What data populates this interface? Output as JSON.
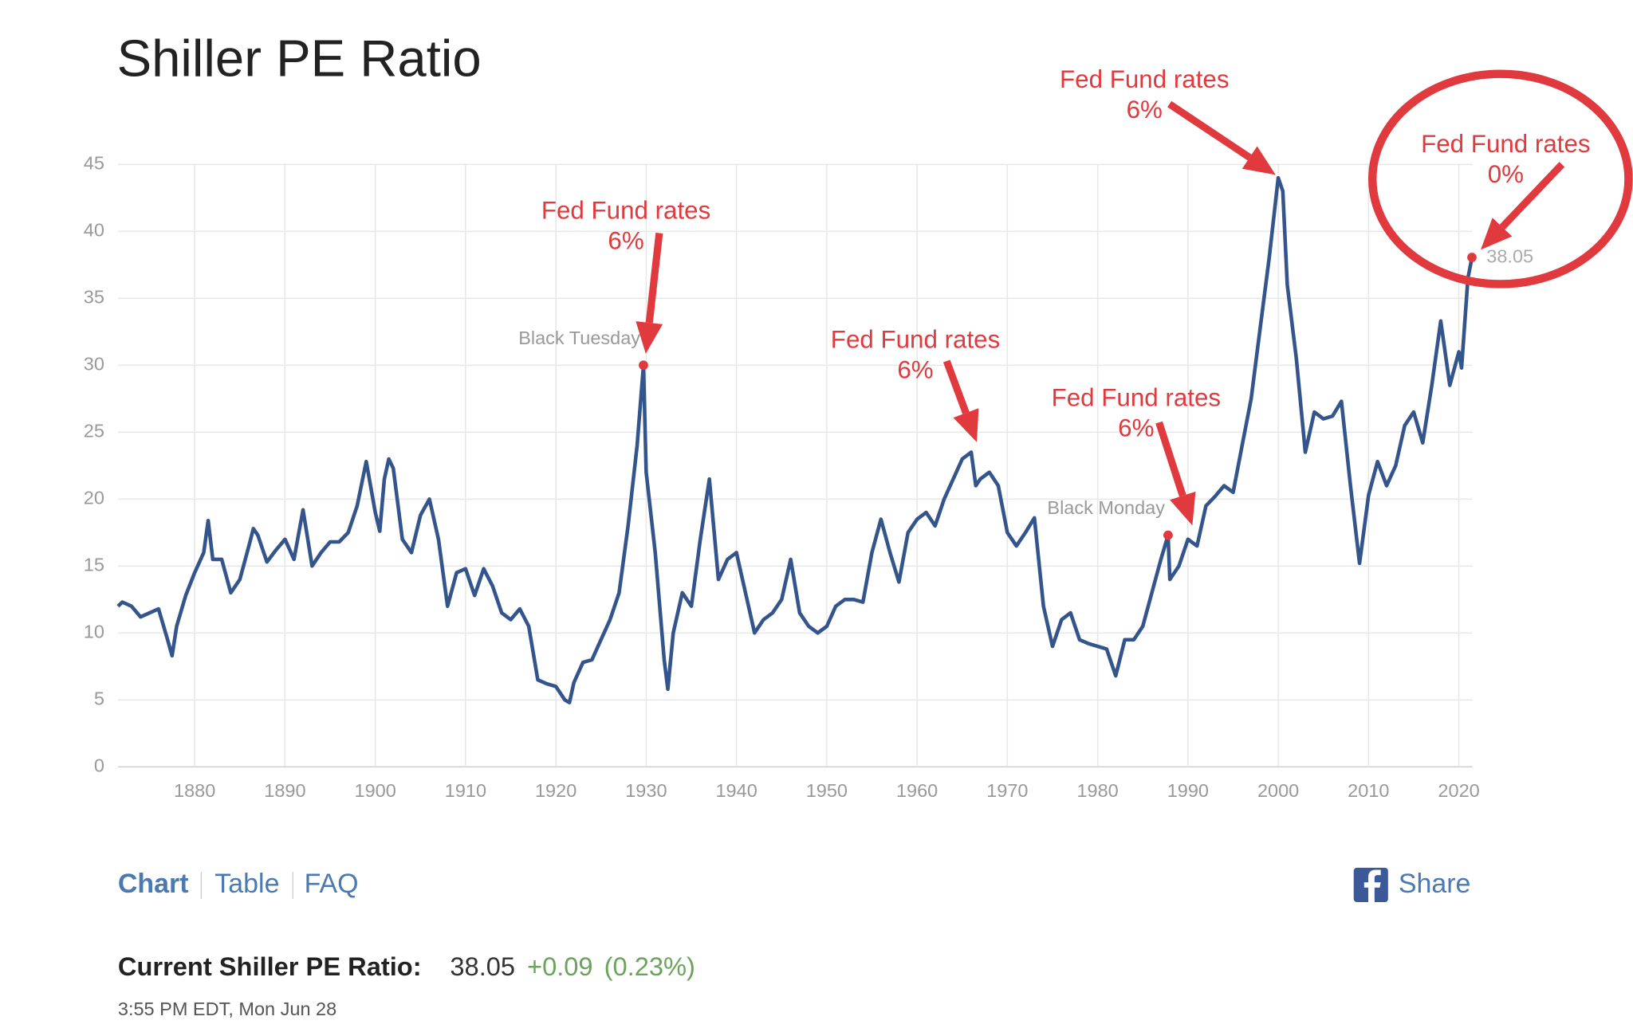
{
  "chart_data": {
    "type": "line",
    "title": "Shiller PE Ratio",
    "series": [
      {
        "name": "Shiller PE Ratio",
        "color": "#34558b",
        "x": [
          1871.5,
          1872,
          1873,
          1874,
          1875,
          1876,
          1877,
          1877.5,
          1878,
          1879,
          1880,
          1881,
          1881.5,
          1882,
          1883,
          1884,
          1885,
          1886,
          1886.5,
          1887,
          1888,
          1889,
          1890,
          1891,
          1892,
          1893,
          1894,
          1895,
          1896,
          1897,
          1898,
          1899,
          1900,
          1900.5,
          1901,
          1901.5,
          1902,
          1903,
          1904,
          1905,
          1906,
          1907,
          1908,
          1909,
          1910,
          1911,
          1912,
          1913,
          1914,
          1915,
          1916,
          1917,
          1918,
          1919,
          1920,
          1921,
          1921.5,
          1922,
          1923,
          1924,
          1925,
          1926,
          1927,
          1928,
          1929,
          1929.7,
          1930,
          1931,
          1932,
          1932.4,
          1933,
          1934,
          1935,
          1936,
          1937,
          1938,
          1939,
          1940,
          1941,
          1942,
          1943,
          1944,
          1945,
          1946,
          1947,
          1948,
          1949,
          1950,
          1951,
          1952,
          1953,
          1954,
          1955,
          1956,
          1957,
          1958,
          1959,
          1960,
          1961,
          1962,
          1963,
          1964,
          1965,
          1966,
          1966.5,
          1967,
          1968,
          1969,
          1970,
          1971,
          1972,
          1973,
          1974,
          1975,
          1976,
          1977,
          1978,
          1979,
          1980,
          1981,
          1982,
          1983,
          1984,
          1985,
          1986,
          1987,
          1987.8,
          1988,
          1989,
          1990,
          1991,
          1992,
          1993,
          1994,
          1995,
          1996,
          1997,
          1998,
          1999,
          2000,
          2000.5,
          2001,
          2002,
          2003,
          2004,
          2005,
          2006,
          2007,
          2008,
          2009,
          2010,
          2011,
          2012,
          2013,
          2014,
          2015,
          2016,
          2017,
          2018,
          2019,
          2020,
          2020.3,
          2021,
          2021.45
        ],
        "values": [
          12,
          12.3,
          12.0,
          11.2,
          11.5,
          11.8,
          9.5,
          8.3,
          10.5,
          12.8,
          14.5,
          16,
          18.4,
          15.5,
          15.5,
          13,
          14,
          16.5,
          17.8,
          17.3,
          15.3,
          16.2,
          17,
          15.5,
          19.2,
          15,
          16,
          16.8,
          16.8,
          17.5,
          19.5,
          22.8,
          19,
          17.6,
          21.5,
          23,
          22.3,
          17,
          16,
          18.8,
          20,
          17,
          12,
          14.5,
          14.8,
          12.8,
          14.8,
          13.5,
          11.5,
          11,
          11.8,
          10.5,
          6.5,
          6.2,
          6.0,
          5.0,
          4.8,
          6.3,
          7.8,
          8.0,
          9.5,
          11,
          13,
          18,
          24,
          30,
          22,
          16,
          8,
          5.8,
          10,
          13,
          12,
          17,
          21.5,
          14,
          15.5,
          16,
          13,
          10,
          11,
          11.5,
          12.5,
          15.5,
          11.5,
          10.5,
          10,
          10.5,
          12,
          12.5,
          12.5,
          12.3,
          16,
          18.5,
          16,
          13.8,
          17.5,
          18.5,
          19,
          18,
          20,
          21.5,
          23,
          23.5,
          21,
          21.5,
          22,
          21,
          17.5,
          16.5,
          17.5,
          18.6,
          12,
          9,
          11,
          11.5,
          9.5,
          9.2,
          9,
          8.8,
          6.8,
          9.5,
          9.5,
          10.5,
          13,
          15.5,
          17.3,
          14,
          15,
          17,
          16.5,
          19.5,
          20.2,
          21,
          20.5,
          24,
          27.5,
          32.8,
          38,
          44,
          43,
          36,
          30.5,
          23.5,
          26.5,
          26,
          26.2,
          27.3,
          21,
          15.2,
          20.3,
          22.8,
          21,
          22.5,
          25.5,
          26.5,
          24.2,
          28.5,
          33.3,
          28.5,
          31,
          29.8,
          36.5,
          38.05
        ]
      }
    ],
    "xlim": [
      1871.5,
      2021.5
    ],
    "xticks": [
      1880,
      1890,
      1900,
      1910,
      1920,
      1930,
      1940,
      1950,
      1960,
      1970,
      1980,
      1990,
      2000,
      2010,
      2020
    ],
    "ylim": [
      0,
      45
    ],
    "yticks": [
      0,
      5,
      10,
      15,
      20,
      25,
      30,
      35,
      40,
      45
    ],
    "grid": true,
    "highlights": [
      {
        "label": "Black Tuesday",
        "x": 1929.7,
        "value": 30
      },
      {
        "label": "Black Monday",
        "x": 1987.8,
        "value": 17.3
      },
      {
        "x": 2021.45,
        "value": 38.05
      }
    ],
    "annotations": [
      [
        "Fed Fund rates",
        "6%"
      ],
      [
        "Fed Fund rates",
        "6%"
      ],
      [
        "Fed Fund rates",
        "6%"
      ],
      [
        "Fed Fund rates",
        "6%"
      ],
      [
        "Fed Fund rates",
        "0%"
      ]
    ]
  },
  "nav": [
    "Chart",
    "Table",
    "FAQ"
  ],
  "share": "Share",
  "current": {
    "label": "Current Shiller PE Ratio:",
    "value": "38.05",
    "change": "+0.09",
    "change_pct": "(0.23%)"
  },
  "timestamp": "3:55 PM EDT, Mon Jun 28"
}
